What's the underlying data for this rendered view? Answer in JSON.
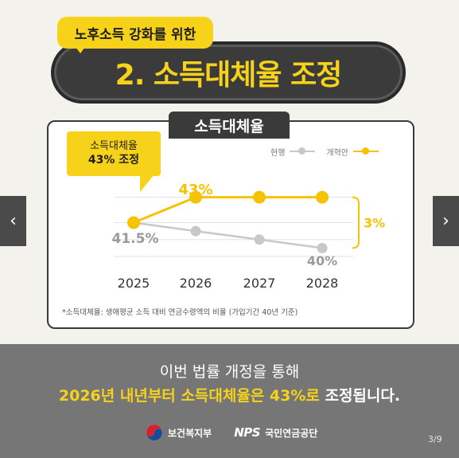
{
  "header": {
    "subtitle": "노후소득 강화를 위한",
    "title": "2. 소득대체율 조정"
  },
  "panel": {
    "tab_label": "소득대체율",
    "callout_line1": "소득대체율",
    "callout_line2": "43% 조정",
    "footnote": "*소득대체율: 생애평균 소득 대비 연금수령액의 비율 (가입기간 40년 기준)"
  },
  "chart_data": {
    "type": "line",
    "x": [
      "2025",
      "2026",
      "2027",
      "2028"
    ],
    "series": [
      {
        "name": "현행",
        "values": [
          41.5,
          41.0,
          40.5,
          40.0
        ],
        "color": "#c8c8c8"
      },
      {
        "name": "개혁안",
        "values": [
          41.5,
          43,
          43,
          43
        ],
        "color": "#f5c300"
      }
    ],
    "data_labels": {
      "start": "41.5%",
      "reform": "43%",
      "current_end": "40%"
    },
    "diff_label": "3%",
    "legend_position": "top-right",
    "ylim": [
      39.5,
      43.5
    ],
    "grid": true
  },
  "nav": {
    "prev_symbol": "‹",
    "next_symbol": "›"
  },
  "bottom": {
    "line1": "이번 법률 개정을 통해",
    "line2_highlight": "2026년 내년부터 소득대체율은 43%로",
    "line2_rest": " 조정됩니다.",
    "logo1": "보건복지부",
    "logo2_brand": "NPS",
    "logo2_text": "국민연금공단",
    "page": "3/9"
  },
  "colors": {
    "accent": "#f7d21a",
    "dark": "#3a3a3a",
    "band": "#767676"
  }
}
